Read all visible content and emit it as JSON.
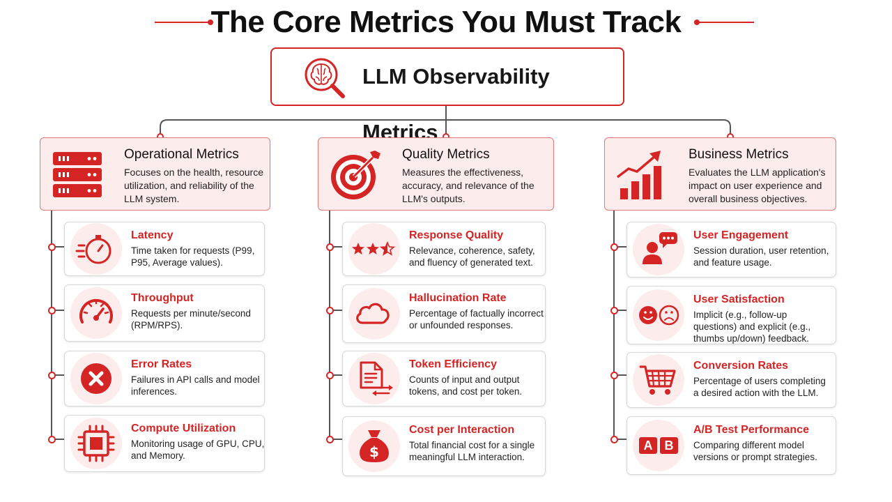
{
  "title": "The Core Metrics You Must Track",
  "root": {
    "label": "LLM Observability Metrics",
    "icon": "brain-magnifier-icon"
  },
  "colors": {
    "accent": "#d42424",
    "accent_light": "#fdecec",
    "line": "#555555"
  },
  "categories": [
    {
      "title": "Operational Metrics",
      "description": "Focuses on the health, resource utilization, and reliability of the LLM system.",
      "icon": "server-rack-icon",
      "metrics": [
        {
          "title": "Latency",
          "description": "Time taken for requests (P99, P95, Average values).",
          "icon": "stopwatch-icon"
        },
        {
          "title": "Throughput",
          "description": "Requests per minute/second (RPM/RPS).",
          "icon": "speedometer-icon"
        },
        {
          "title": "Error Rates",
          "description": "Failures in API calls and model inferences.",
          "icon": "error-x-icon"
        },
        {
          "title": "Compute Utilization",
          "description": "Monitoring usage of GPU, CPU, and Memory.",
          "icon": "cpu-chip-icon"
        }
      ]
    },
    {
      "title": "Quality Metrics",
      "description": "Measures the effectiveness, accuracy, and relevance of the LLM's outputs.",
      "icon": "target-arrow-icon",
      "metrics": [
        {
          "title": "Response Quality",
          "description": "Relevance, coherence, safety, and fluency of generated text.",
          "icon": "star-rating-icon"
        },
        {
          "title": "Hallucination Rate",
          "description": "Percentage of factually incorrect or unfounded responses.",
          "icon": "cloud-icon"
        },
        {
          "title": "Token Efficiency",
          "description": "Counts of input and output tokens, and cost per token.",
          "icon": "document-exchange-icon"
        },
        {
          "title": "Cost per Interaction",
          "description": "Total financial cost for a single meaningful LLM interaction.",
          "icon": "money-bag-icon"
        }
      ]
    },
    {
      "title": "Business Metrics",
      "description": "Evaluates the LLM application's impact on user experience and overall business objectives.",
      "icon": "growth-chart-icon",
      "metrics": [
        {
          "title": "User Engagement",
          "description": "Session duration, user retention, and feature usage.",
          "icon": "user-chat-icon"
        },
        {
          "title": "User Satisfaction",
          "description": "Implicit (e.g., follow-up questions) and explicit (e.g., thumbs up/down) feedback.",
          "icon": "happy-sad-faces-icon"
        },
        {
          "title": "Conversion Rates",
          "description": "Percentage of users completing a desired action with the LLM.",
          "icon": "shopping-cart-icon"
        },
        {
          "title": "A/B Test Performance",
          "description": "Comparing different model versions or prompt strategies.",
          "icon": "ab-test-icon",
          "icon_letters": [
            "A",
            "B"
          ]
        }
      ]
    }
  ]
}
